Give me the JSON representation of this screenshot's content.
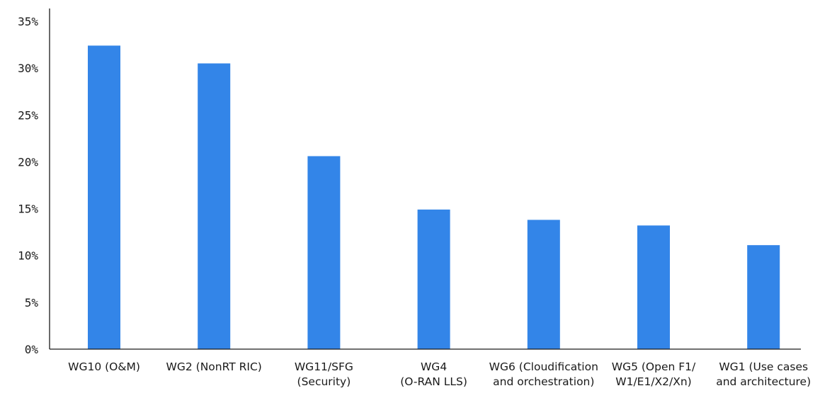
{
  "chart_data": {
    "type": "bar",
    "categories": [
      [
        "WG10 (O&M)"
      ],
      [
        "WG2 (NonRT RIC)"
      ],
      [
        "WG11/SFG",
        "(Security)"
      ],
      [
        "WG4",
        "(O-RAN LLS)"
      ],
      [
        "WG6 (Cloudification",
        "and orchestration)"
      ],
      [
        "WG5 (Open F1/",
        "W1/E1/X2/Xn)"
      ],
      [
        "WG1 (Use cases",
        "and architecture)"
      ]
    ],
    "values": [
      32.4,
      30.5,
      20.6,
      14.9,
      13.8,
      13.2,
      11.1
    ],
    "y_ticks": [
      "0%",
      "5%",
      "10%",
      "15%",
      "20%",
      "25%",
      "30%",
      "35%"
    ],
    "ylim": [
      0,
      35
    ],
    "title": "",
    "xlabel": "",
    "ylabel": "",
    "grid": false,
    "bar_color": "#3385e8",
    "axis_color": "#1a1a1a"
  }
}
